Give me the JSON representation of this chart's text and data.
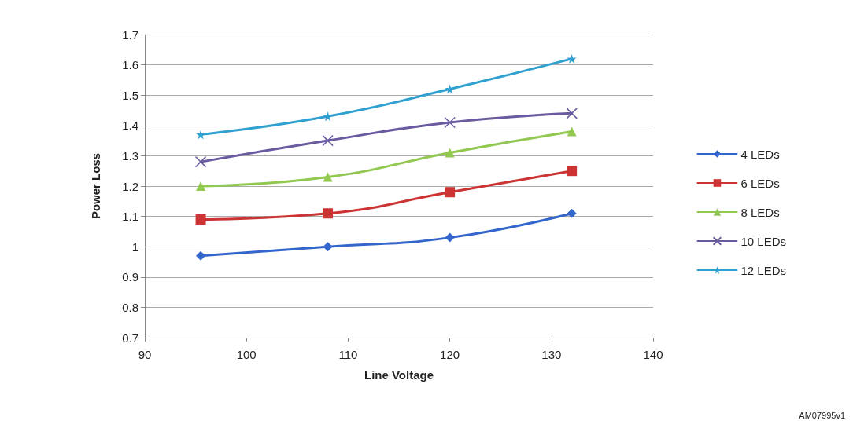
{
  "chart_data": {
    "type": "line",
    "xlabel": "Line Voltage",
    "ylabel": "Power Loss",
    "x": [
      95.5,
      108,
      120,
      132
    ],
    "xlim": [
      90,
      140
    ],
    "xticks": [
      90,
      100,
      110,
      120,
      130,
      140
    ],
    "ylim": [
      0.7,
      1.7
    ],
    "yticks": [
      0.7,
      0.8,
      0.9,
      1,
      1.1,
      1.2,
      1.3,
      1.4,
      1.5,
      1.6,
      1.7
    ],
    "grid": "y",
    "legend": "right",
    "line_style": "solid",
    "series": [
      {
        "name": "4 LEDs",
        "color": "#3366cc",
        "marker": "diamond",
        "values": [
          0.97,
          1.0,
          1.03,
          1.11
        ]
      },
      {
        "name": "6 LEDs",
        "color": "#cc3333",
        "marker": "square",
        "values": [
          1.09,
          1.11,
          1.18,
          1.25
        ]
      },
      {
        "name": "8 LEDs",
        "color": "#92c850",
        "marker": "triangle",
        "values": [
          1.2,
          1.23,
          1.31,
          1.38
        ]
      },
      {
        "name": "10 LEDs",
        "color": "#6a5aa0",
        "marker": "cross",
        "values": [
          1.28,
          1.35,
          1.41,
          1.44
        ]
      },
      {
        "name": "12 LEDs",
        "color": "#2fa0d0",
        "marker": "star",
        "values": [
          1.37,
          1.43,
          1.52,
          1.62
        ]
      }
    ],
    "annotations": [
      "AM07995v1"
    ]
  }
}
